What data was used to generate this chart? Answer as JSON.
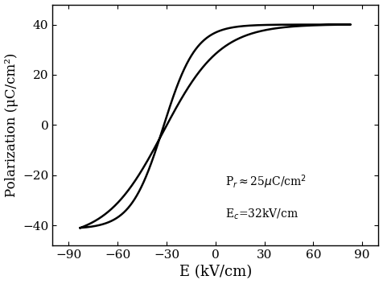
{
  "xlim": [
    -100,
    100
  ],
  "ylim": [
    -48,
    48
  ],
  "xticks": [
    -90,
    -60,
    -30,
    0,
    30,
    60,
    90
  ],
  "yticks": [
    -40,
    -20,
    0,
    20,
    40
  ],
  "xlabel": "E (kV/cm)",
  "ylabel": "Polarization (μC/cm²)",
  "line_color": "#000000",
  "line_width": 1.8,
  "background_color": "#ffffff",
  "Pr": 25,
  "Ec": 32,
  "E_max": 83,
  "P_max": 40,
  "E_min": -83,
  "P_min": -41,
  "alpha_upper": 18,
  "alpha_lower": 18
}
